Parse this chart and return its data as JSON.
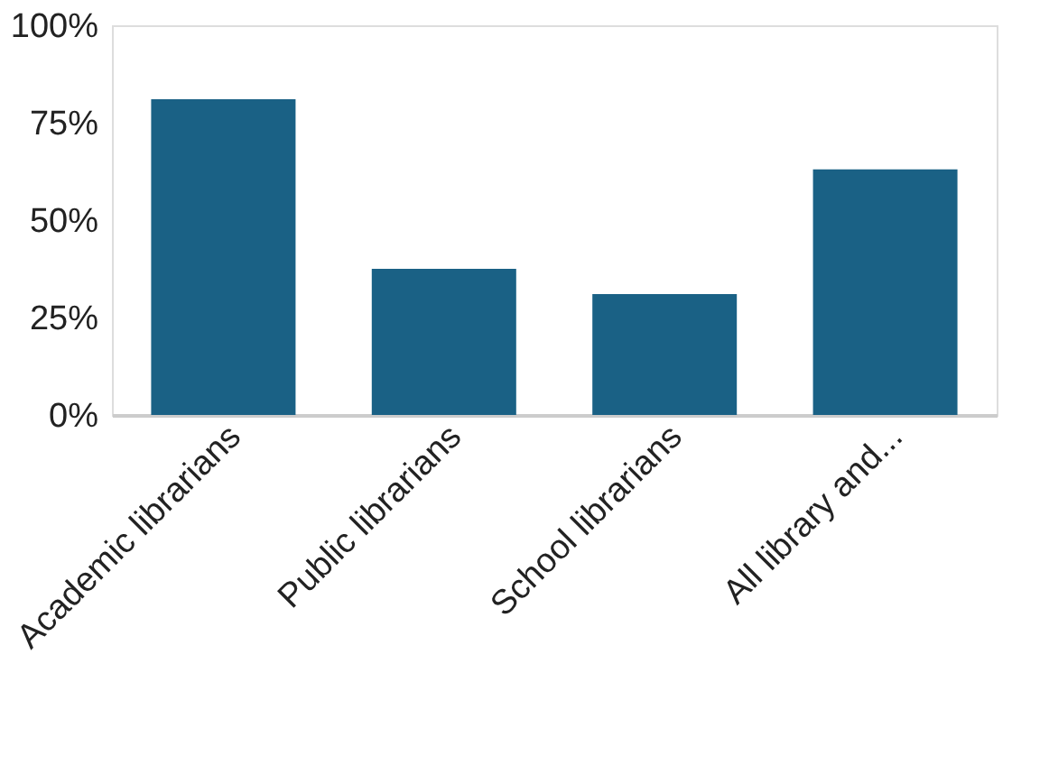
{
  "chart_data": {
    "type": "bar",
    "categories": [
      "Academic librarians",
      "Public librarians",
      "School librarians",
      "All library and..."
    ],
    "values": [
      81,
      37.5,
      31,
      63
    ],
    "color": "#1a6185",
    "ylim": [
      0,
      100
    ],
    "yticks": [
      {
        "value": 0,
        "label": "0%"
      },
      {
        "value": 25,
        "label": "25%"
      },
      {
        "value": 50,
        "label": "50%"
      },
      {
        "value": 75,
        "label": "75%"
      },
      {
        "value": 100,
        "label": "100%"
      }
    ],
    "grid": false
  }
}
